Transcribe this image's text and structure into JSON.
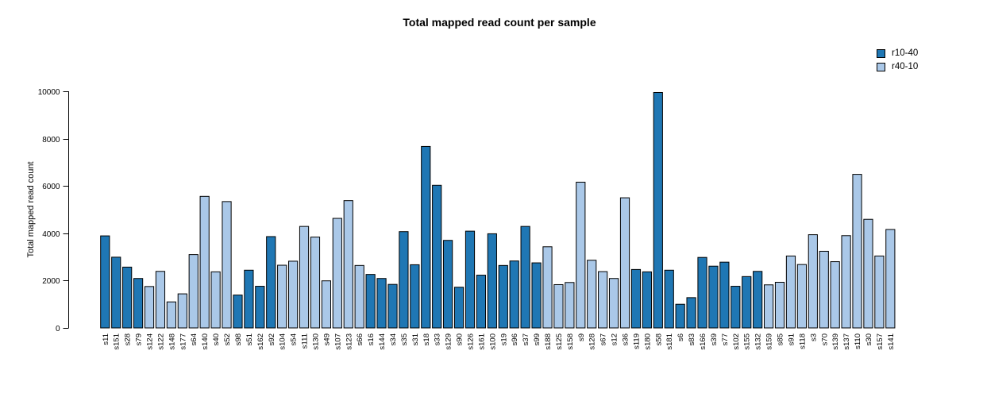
{
  "chart_data": {
    "type": "bar",
    "title": "Total mapped read count per sample",
    "xlabel": "",
    "ylabel": "Total mapped read count",
    "ylim": [
      0,
      10000
    ],
    "yticks": [
      0,
      2000,
      4000,
      6000,
      8000,
      10000
    ],
    "grid": false,
    "legend_position": "top-right",
    "legend": [
      {
        "label": "r10-40",
        "color": "#1F77B4"
      },
      {
        "label": "r40-10",
        "color": "#AAC8E8"
      }
    ],
    "bars": [
      {
        "label": "s11",
        "value": 3890,
        "group": "r10-40"
      },
      {
        "label": "s151",
        "value": 2990,
        "group": "r10-40"
      },
      {
        "label": "s28",
        "value": 2570,
        "group": "r10-40"
      },
      {
        "label": "s79",
        "value": 2090,
        "group": "r10-40"
      },
      {
        "label": "s124",
        "value": 1750,
        "group": "r40-10"
      },
      {
        "label": "s122",
        "value": 2390,
        "group": "r40-10"
      },
      {
        "label": "s148",
        "value": 1100,
        "group": "r40-10"
      },
      {
        "label": "s177",
        "value": 1440,
        "group": "r40-10"
      },
      {
        "label": "s64",
        "value": 3100,
        "group": "r40-10"
      },
      {
        "label": "s140",
        "value": 5560,
        "group": "r40-10"
      },
      {
        "label": "s40",
        "value": 2370,
        "group": "r40-10"
      },
      {
        "label": "s52",
        "value": 5340,
        "group": "r40-10"
      },
      {
        "label": "s98",
        "value": 1390,
        "group": "r10-40"
      },
      {
        "label": "s51",
        "value": 2440,
        "group": "r10-40"
      },
      {
        "label": "s162",
        "value": 1760,
        "group": "r10-40"
      },
      {
        "label": "s92",
        "value": 3860,
        "group": "r10-40"
      },
      {
        "label": "s104",
        "value": 2650,
        "group": "r40-10"
      },
      {
        "label": "s54",
        "value": 2820,
        "group": "r40-10"
      },
      {
        "label": "s111",
        "value": 4290,
        "group": "r40-10"
      },
      {
        "label": "s130",
        "value": 3840,
        "group": "r40-10"
      },
      {
        "label": "s49",
        "value": 1990,
        "group": "r40-10"
      },
      {
        "label": "s107",
        "value": 4630,
        "group": "r40-10"
      },
      {
        "label": "s123",
        "value": 5380,
        "group": "r40-10"
      },
      {
        "label": "s66",
        "value": 2640,
        "group": "r40-10"
      },
      {
        "label": "s16",
        "value": 2260,
        "group": "r10-40"
      },
      {
        "label": "s144",
        "value": 2090,
        "group": "r10-40"
      },
      {
        "label": "s34",
        "value": 1840,
        "group": "r10-40"
      },
      {
        "label": "s35",
        "value": 4070,
        "group": "r10-40"
      },
      {
        "label": "s31",
        "value": 2670,
        "group": "r10-40"
      },
      {
        "label": "s18",
        "value": 7670,
        "group": "r10-40"
      },
      {
        "label": "s33",
        "value": 6030,
        "group": "r10-40"
      },
      {
        "label": "s129",
        "value": 3700,
        "group": "r10-40"
      },
      {
        "label": "s90",
        "value": 1720,
        "group": "r10-40"
      },
      {
        "label": "s126",
        "value": 4090,
        "group": "r10-40"
      },
      {
        "label": "s161",
        "value": 2230,
        "group": "r10-40"
      },
      {
        "label": "s100",
        "value": 3980,
        "group": "r10-40"
      },
      {
        "label": "s19",
        "value": 2640,
        "group": "r10-40"
      },
      {
        "label": "s96",
        "value": 2830,
        "group": "r10-40"
      },
      {
        "label": "s37",
        "value": 4290,
        "group": "r10-40"
      },
      {
        "label": "s99",
        "value": 2750,
        "group": "r10-40"
      },
      {
        "label": "s188",
        "value": 3430,
        "group": "r40-10"
      },
      {
        "label": "s125",
        "value": 1830,
        "group": "r40-10"
      },
      {
        "label": "s158",
        "value": 1920,
        "group": "r40-10"
      },
      {
        "label": "s9",
        "value": 6160,
        "group": "r40-10"
      },
      {
        "label": "s128",
        "value": 2860,
        "group": "r40-10"
      },
      {
        "label": "s67",
        "value": 2380,
        "group": "r40-10"
      },
      {
        "label": "s12",
        "value": 2090,
        "group": "r40-10"
      },
      {
        "label": "s36",
        "value": 5500,
        "group": "r40-10"
      },
      {
        "label": "s119",
        "value": 2470,
        "group": "r10-40"
      },
      {
        "label": "s180",
        "value": 2370,
        "group": "r10-40"
      },
      {
        "label": "s58",
        "value": 9950,
        "group": "r10-40"
      },
      {
        "label": "s181",
        "value": 2440,
        "group": "r10-40"
      },
      {
        "label": "s6",
        "value": 1000,
        "group": "r10-40"
      },
      {
        "label": "s83",
        "value": 1280,
        "group": "r10-40"
      },
      {
        "label": "s166",
        "value": 2980,
        "group": "r10-40"
      },
      {
        "label": "s39",
        "value": 2610,
        "group": "r10-40"
      },
      {
        "label": "s77",
        "value": 2780,
        "group": "r10-40"
      },
      {
        "label": "s102",
        "value": 1760,
        "group": "r10-40"
      },
      {
        "label": "s155",
        "value": 2170,
        "group": "r10-40"
      },
      {
        "label": "s132",
        "value": 2390,
        "group": "r10-40"
      },
      {
        "label": "s159",
        "value": 1820,
        "group": "r40-10"
      },
      {
        "label": "s85",
        "value": 1930,
        "group": "r40-10"
      },
      {
        "label": "s91",
        "value": 3040,
        "group": "r40-10"
      },
      {
        "label": "s118",
        "value": 2680,
        "group": "r40-10"
      },
      {
        "label": "s3",
        "value": 3940,
        "group": "r40-10"
      },
      {
        "label": "s70",
        "value": 3240,
        "group": "r40-10"
      },
      {
        "label": "s139",
        "value": 2800,
        "group": "r40-10"
      },
      {
        "label": "s137",
        "value": 3900,
        "group": "r40-10"
      },
      {
        "label": "s110",
        "value": 6490,
        "group": "r40-10"
      },
      {
        "label": "s30",
        "value": 4590,
        "group": "r40-10"
      },
      {
        "label": "s157",
        "value": 3040,
        "group": "r40-10"
      },
      {
        "label": "s141",
        "value": 4160,
        "group": "r40-10"
      }
    ]
  }
}
